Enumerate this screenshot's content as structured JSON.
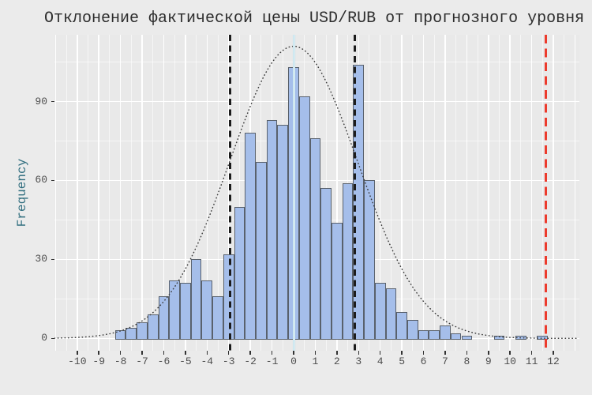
{
  "title": "Отклонение фактической цены USD/RUB от прогнозного уровня",
  "colors": {
    "page_background": "#ebebeb",
    "panel_background": "#e9e9e9",
    "grid_major": "#ffffff",
    "grid_minor": "rgba(255,255,255,0.58)",
    "bar_fill": "#a5beea",
    "bar_border": "#59616c",
    "curve": "#3b3b3b",
    "band_line": "#1c1c1c",
    "outlier_line": "#ec3b2d",
    "mean_line_core": "#ffffff",
    "mean_line_edge": "#b7dce8",
    "title_text": "#2d2d2d",
    "axis_text": "#4d4d4d",
    "ylabel_text": "#2f6d7e",
    "tick_mark": "#333333"
  },
  "chart_data": {
    "type": "bar",
    "subtype": "histogram",
    "title": "Отклонение фактической цены USD/RUB от прогнозного уровня",
    "xlabel": "",
    "ylabel": "Frequency",
    "legend": "none",
    "grid": "white major and minor gridlines on gray panel",
    "bin_width": 0.5,
    "bin_centers": [
      -8.0,
      -7.5,
      -7.0,
      -6.5,
      -6.0,
      -5.5,
      -5.0,
      -4.5,
      -4.0,
      -3.5,
      -3.0,
      -2.5,
      -2.0,
      -1.5,
      -1.0,
      -0.5,
      0.0,
      0.5,
      1.0,
      1.5,
      2.0,
      2.5,
      3.0,
      3.5,
      4.0,
      4.5,
      5.0,
      5.5,
      6.0,
      6.5,
      7.0,
      7.5,
      8.0,
      8.5,
      9.0,
      9.5,
      10.0,
      10.5,
      11.0,
      11.5
    ],
    "counts": [
      3,
      4,
      6,
      9,
      16,
      22,
      21,
      30,
      22,
      16,
      32,
      50,
      78,
      67,
      83,
      81,
      103,
      92,
      76,
      57,
      44,
      59,
      104,
      60,
      21,
      19,
      10,
      7,
      3,
      3,
      5,
      2,
      1,
      0,
      0,
      1,
      0,
      1,
      0,
      1
    ],
    "x_ticks": [
      -10,
      -9,
      -8,
      -7,
      -6,
      -5,
      -4,
      -3,
      -2,
      -1,
      0,
      1,
      2,
      3,
      4,
      5,
      6,
      7,
      8,
      9,
      10,
      11,
      12
    ],
    "x_tick_labels": [
      "-10",
      "-9",
      "-8",
      "-7",
      "-6",
      "-5",
      "-4",
      "-3",
      "-2",
      "-1",
      "0",
      "1",
      "2",
      "3",
      "4",
      "5",
      "6",
      "7",
      "8",
      "9",
      "10",
      "11",
      "12"
    ],
    "y_ticks": [
      0,
      30,
      60,
      90
    ],
    "y_tick_labels": [
      "0",
      "30",
      "60",
      "90"
    ],
    "y_minor_ticks": [
      15,
      45,
      75,
      105
    ],
    "x_grid_major": [
      -11,
      -10,
      -9,
      -8,
      -7,
      -6,
      -5,
      -4,
      -3,
      -2,
      -1,
      0,
      1,
      2,
      3,
      4,
      5,
      6,
      7,
      8,
      9,
      10,
      11,
      12,
      13
    ],
    "x_grid_minor": [
      -10.5,
      -9.5,
      -8.5,
      -7.5,
      -6.5,
      -5.5,
      -4.5,
      -3.5,
      -2.5,
      -1.5,
      -0.5,
      0.5,
      1.5,
      2.5,
      3.5,
      4.5,
      5.5,
      6.5,
      7.5,
      8.5,
      9.5,
      10.5,
      11.5,
      12.5
    ],
    "xlim": [
      -11.05,
      13.2
    ],
    "ylim": [
      0,
      115.4
    ],
    "normal_curve": {
      "mean": 0,
      "sigma": 2.95,
      "peak": 111,
      "style": "dotted"
    },
    "vlines": [
      {
        "x": 0,
        "style": "solid",
        "role": "mean-line"
      },
      {
        "x": -2.92,
        "style": "dashed",
        "role": "lower-band-line"
      },
      {
        "x": 2.83,
        "style": "dashed",
        "role": "upper-band-line"
      },
      {
        "x": 11.66,
        "style": "dashed",
        "role": "outlier-line"
      }
    ]
  }
}
